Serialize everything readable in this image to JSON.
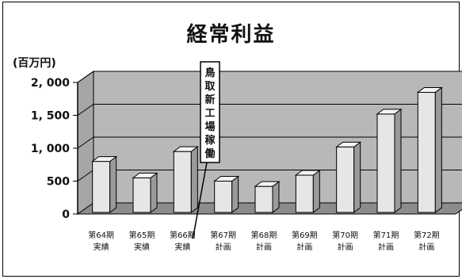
{
  "chart_data": {
    "type": "bar",
    "title": "経常利益",
    "unit_label": "(百万円)",
    "categories": [
      [
        "第64期",
        "実績"
      ],
      [
        "第65期",
        "実績"
      ],
      [
        "第66期",
        "実績"
      ],
      [
        "第67期",
        "計画"
      ],
      [
        "第68期",
        "計画"
      ],
      [
        "第69期",
        "計画"
      ],
      [
        "第70期",
        "計画"
      ],
      [
        "第71期",
        "計画"
      ],
      [
        "第72期",
        "計画"
      ]
    ],
    "values": [
      800,
      550,
      950,
      500,
      420,
      590,
      1020,
      1520,
      1850
    ],
    "ylim": [
      0,
      2000
    ],
    "yticks": [
      0,
      500,
      1000,
      1500,
      2000
    ],
    "ytick_labels": [
      "0",
      "500",
      "1, 000",
      "1, 500",
      "2, 000"
    ],
    "annotation": {
      "text": "鳥取新工場稼働",
      "target_category_index": 2
    },
    "grid": true,
    "three_d": true,
    "colors": {
      "bar_front": "#e6e6e6",
      "bar_side": "#9a9a9a",
      "bar_top": "#f4f4f4",
      "wall": "#b8b8b8",
      "floor": "#8c8c8c"
    }
  }
}
